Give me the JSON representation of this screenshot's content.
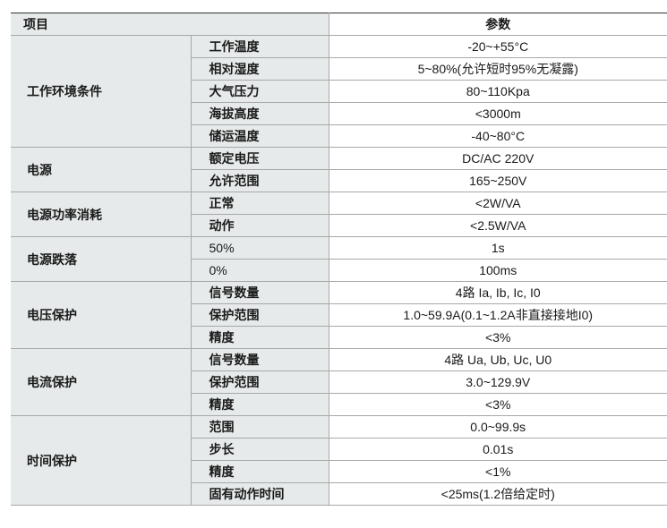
{
  "header": {
    "item": "项目",
    "params": "参数"
  },
  "groups": [
    {
      "name": "工作环境条件",
      "rows": [
        {
          "label": "工作温度",
          "value": "-20~+55°C"
        },
        {
          "label": "相对湿度",
          "value": "5~80%(允许短时95%无凝露)"
        },
        {
          "label": "大气压力",
          "value": "80~110Kpa"
        },
        {
          "label": "海拔高度",
          "value": "<3000m"
        },
        {
          "label": "储运温度",
          "value": "-40~80°C"
        }
      ]
    },
    {
      "name": "电源",
      "rows": [
        {
          "label": "额定电压",
          "value": "DC/AC 220V"
        },
        {
          "label": "允许范围",
          "value": "165~250V"
        }
      ]
    },
    {
      "name": "电源功率消耗",
      "rows": [
        {
          "label": "正常",
          "value": "<2W/VA"
        },
        {
          "label": "动作",
          "value": "<2.5W/VA"
        }
      ]
    },
    {
      "name": "电源跌落",
      "rows": [
        {
          "label": "50%",
          "value": "1s"
        },
        {
          "label": "0%",
          "value": "100ms"
        }
      ]
    },
    {
      "name": "电压保护",
      "rows": [
        {
          "label": "信号数量",
          "value": "4路 Ia, Ib, Ic, I0"
        },
        {
          "label": "保护范围",
          "value": "1.0~59.9A(0.1~1.2A非直接接地I0)"
        },
        {
          "label": "精度",
          "value": "<3%"
        }
      ]
    },
    {
      "name": "电流保护",
      "rows": [
        {
          "label": "信号数量",
          "value": "4路 Ua, Ub, Uc, U0"
        },
        {
          "label": "保护范围",
          "value": "3.0~129.9V"
        },
        {
          "label": "精度",
          "value": "<3%"
        }
      ]
    },
    {
      "name": "时间保护",
      "rows": [
        {
          "label": "范围",
          "value": "0.0~99.9s"
        },
        {
          "label": "步长",
          "value": "0.01s"
        },
        {
          "label": "精度",
          "value": "<1%"
        },
        {
          "label": "固有动作时间",
          "value": "<25ms(1.2倍给定时)"
        }
      ]
    }
  ]
}
